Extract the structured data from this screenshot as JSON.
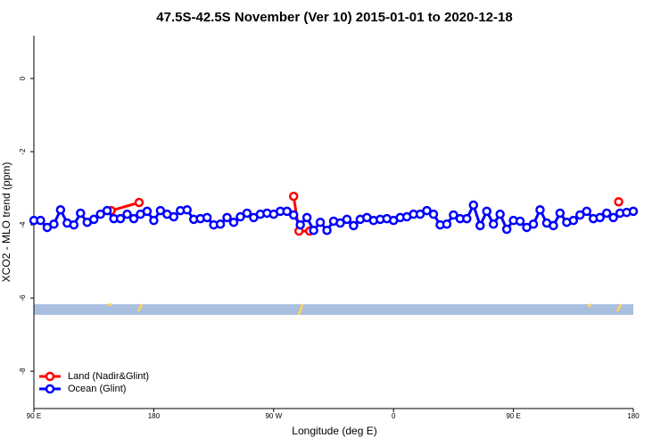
{
  "chart_data": {
    "type": "line",
    "title": "47.5S-42.5S November (Ver 10)   2015-01-01 to 2020-12-18",
    "x_label": "Longitude (deg E)",
    "y_label": "XCO2 - MLO trend (ppm)",
    "xlim": [
      90,
      540
    ],
    "ylim": [
      -9.02,
      1.17
    ],
    "xticks": [
      {
        "value": 90,
        "label": "90 E"
      },
      180,
      {
        "value": 270,
        "label": "90 W"
      },
      {
        "value": 360,
        "label": "0"
      },
      {
        "value": 450,
        "label": "90 E"
      },
      {
        "value": 540,
        "label": "180"
      }
    ],
    "yticks": [
      0,
      -2,
      -4,
      -6,
      -8
    ],
    "mask_band": [
      -6.17,
      -6.46
    ],
    "legend": "bottom-left",
    "series": [
      {
        "name": "Land (Nadir&Glint)",
        "color": "#ff0000",
        "x": [
          148,
          169,
          250,
          285,
          289,
          297,
          500,
          529
        ],
        "values": [
          -3.61,
          -3.39,
          null,
          -3.22,
          -4.17,
          -4.17,
          null,
          -3.37
        ]
      },
      {
        "name": "Ocean (Glint)",
        "color": "#0000ff",
        "x": [
          90,
          95,
          100,
          105,
          110,
          115,
          120,
          125,
          130,
          135,
          140,
          145,
          150,
          155,
          160,
          165,
          170,
          175,
          180,
          185,
          190,
          195,
          200,
          205,
          210,
          215,
          220,
          225,
          230,
          235,
          240,
          245,
          250,
          255,
          260,
          265,
          270,
          275,
          280,
          285,
          290,
          295,
          300,
          305,
          310,
          315,
          320,
          325,
          330,
          335,
          340,
          345,
          350,
          355,
          360,
          365,
          370,
          375,
          380,
          385,
          390,
          395,
          400,
          405,
          410,
          415,
          420,
          425,
          430,
          435,
          440,
          445,
          450,
          455,
          460,
          465,
          470,
          475,
          480,
          485,
          490,
          495,
          500,
          505,
          510,
          515,
          520,
          525,
          530,
          535,
          540
        ],
        "values": [
          -3.88,
          -3.88,
          -4.07,
          -3.98,
          -3.59,
          -3.95,
          -4.0,
          -3.68,
          -3.93,
          -3.85,
          -3.71,
          -3.61,
          -3.83,
          -3.83,
          -3.71,
          -3.83,
          -3.71,
          -3.63,
          -3.88,
          -3.61,
          -3.71,
          -3.78,
          -3.61,
          -3.59,
          -3.85,
          -3.83,
          -3.8,
          -4.0,
          -3.98,
          -3.8,
          -3.93,
          -3.78,
          -3.68,
          -3.8,
          -3.71,
          -3.68,
          -3.71,
          -3.63,
          -3.63,
          -3.73,
          -4.0,
          -3.8,
          -4.15,
          -3.93,
          -4.15,
          -3.9,
          -3.95,
          -3.85,
          -4.02,
          -3.85,
          -3.8,
          -3.88,
          -3.85,
          -3.83,
          -3.88,
          -3.8,
          -3.78,
          -3.71,
          -3.71,
          -3.61,
          -3.71,
          -4.0,
          -3.98,
          -3.73,
          -3.83,
          -3.83,
          -3.46,
          -4.02,
          -3.63,
          -3.98,
          -3.71,
          -4.12,
          -3.88,
          -3.9,
          -4.07,
          -3.98,
          -3.59,
          -3.95,
          -4.02,
          -3.68,
          -3.93,
          -3.88,
          -3.73,
          -3.63,
          -3.83,
          -3.8,
          -3.68,
          -3.8,
          -3.68,
          -3.66,
          -3.63
        ]
      }
    ]
  }
}
